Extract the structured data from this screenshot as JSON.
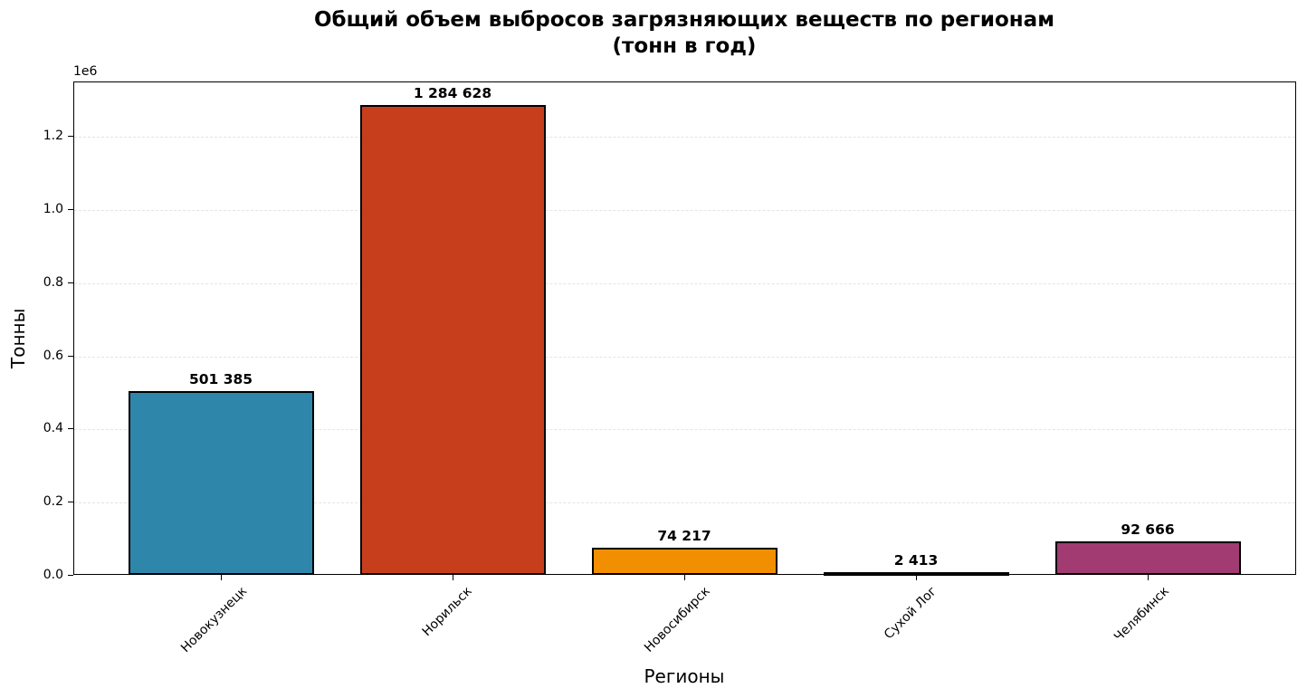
{
  "chart_data": {
    "type": "bar",
    "title": "Общий объем выбросов загрязняющих веществ по регионам\n(тонн в год)",
    "title_lines": [
      "Общий объем выбросов загрязняющих веществ по регионам",
      "(тонн в год)"
    ],
    "xlabel": "Регионы",
    "ylabel": "Тонны",
    "y_offset_label": "1e6",
    "categories": [
      "Новокузнецк",
      "Норильск",
      "Новосибирск",
      "Сухой Лог",
      "Челябинск"
    ],
    "values": [
      501385,
      1284628,
      74217,
      2413,
      92666
    ],
    "value_labels": [
      "501 385",
      "1 284 628",
      "74 217",
      "2 413",
      "92 666"
    ],
    "colors": [
      "#2E86AB",
      "#C73E1D",
      "#F18F01",
      "#3B1F2B",
      "#A23B72"
    ],
    "yticks": [
      0.0,
      0.2,
      0.4,
      0.6,
      0.8,
      1.0,
      1.2
    ],
    "ytick_labels": [
      "0.0",
      "0.2",
      "0.4",
      "0.6",
      "0.8",
      "1.0",
      "1.2"
    ],
    "ylim": [
      0,
      1348859
    ],
    "grid": "y, dashed",
    "legend": null
  }
}
